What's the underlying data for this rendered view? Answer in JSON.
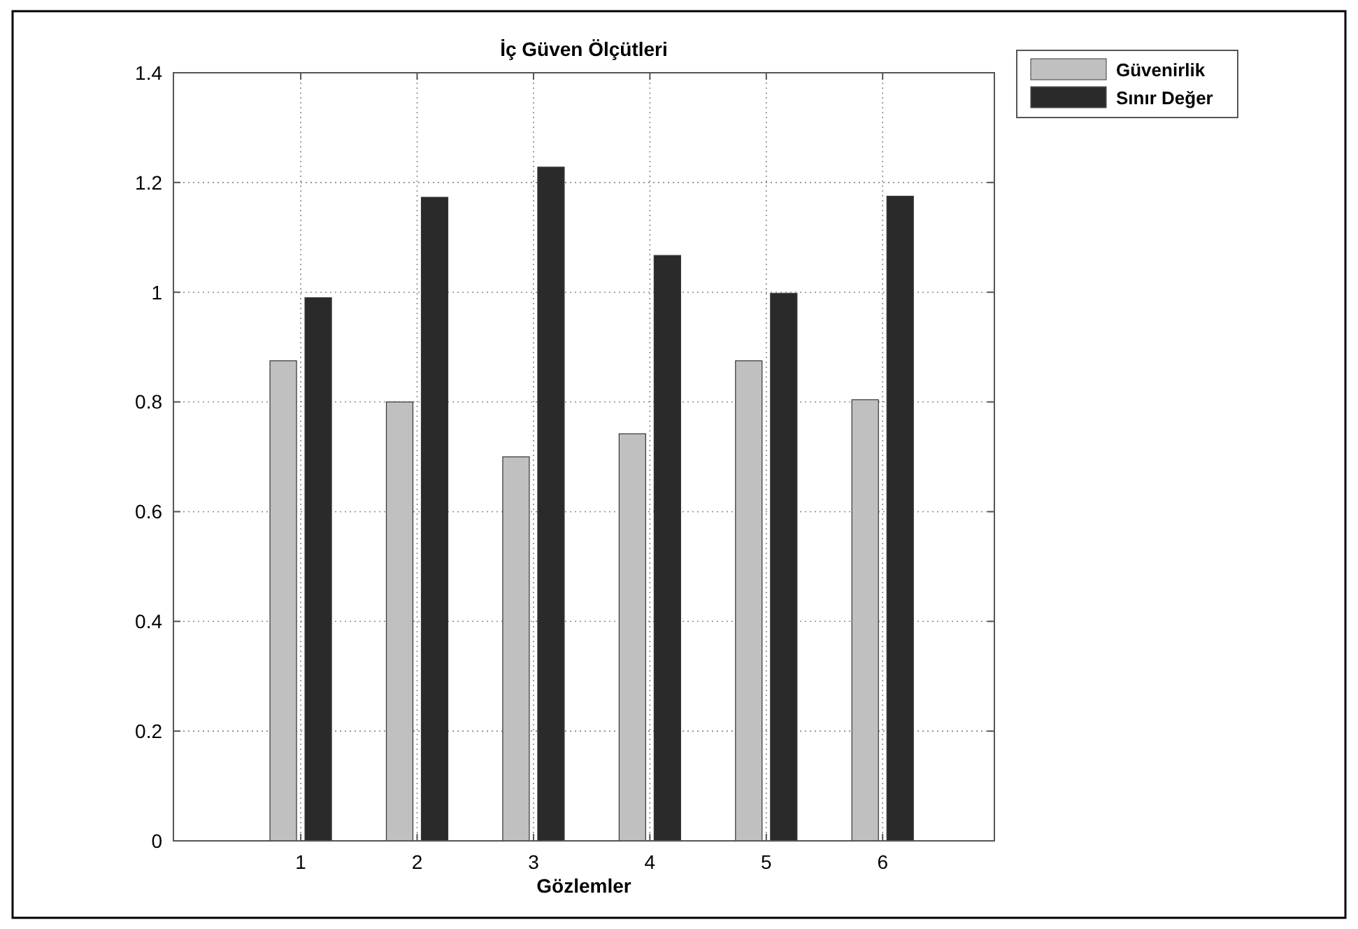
{
  "chart_data": {
    "type": "bar",
    "title": "İç Güven Ölçütleri",
    "xlabel": "Gözlemler",
    "categories": [
      "1",
      "2",
      "3",
      "4",
      "5",
      "6"
    ],
    "series": [
      {
        "name": "Güvenirlik",
        "color": "#c0c0c0",
        "values": [
          0.875,
          0.8,
          0.7,
          0.742,
          0.875,
          0.804
        ]
      },
      {
        "name": "Sınır Değer",
        "color": "#2a2a2a",
        "values": [
          0.99,
          1.173,
          1.228,
          1.067,
          0.998,
          1.175
        ]
      }
    ],
    "ylim": [
      0,
      1.4
    ],
    "yticks": [
      0,
      0.2,
      0.4,
      0.6,
      0.8,
      1,
      1.2,
      1.4
    ],
    "grid": true,
    "legend": "top right"
  }
}
